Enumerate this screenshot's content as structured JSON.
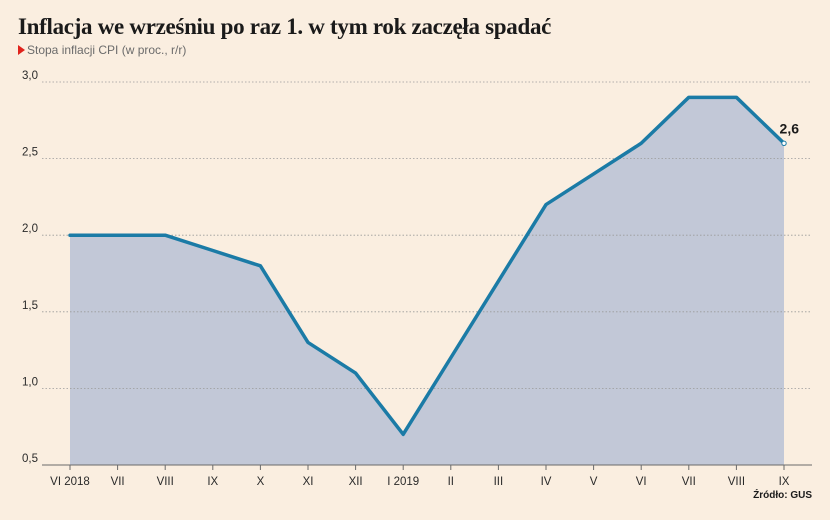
{
  "chart_data": {
    "type": "area",
    "title": "Inflacja we wrześniu po raz 1. w tym rok zaczęła spadać",
    "subtitle": "Stopa inflacji CPI (w proc., r/r)",
    "categories": [
      "VI 2018",
      "VII",
      "VIII",
      "IX",
      "X",
      "XI",
      "XII",
      "I 2019",
      "II",
      "III",
      "IV",
      "V",
      "VI",
      "VII",
      "VIII",
      "IX"
    ],
    "values": [
      2.0,
      2.0,
      2.0,
      1.9,
      1.8,
      1.3,
      1.1,
      0.7,
      1.2,
      1.7,
      2.2,
      2.4,
      2.6,
      2.9,
      2.9,
      2.6
    ],
    "ylim": [
      0.5,
      3.0
    ],
    "yticks": [
      0.5,
      1.0,
      1.5,
      2.0,
      2.5,
      3.0
    ],
    "ytick_labels": [
      "0,5",
      "1,0",
      "1,5",
      "2,0",
      "2,5",
      "3,0"
    ],
    "last_value_label": "2,6",
    "source": "Źródło: GUS",
    "grid": true,
    "colors": {
      "line": "#1b7ba6",
      "area": "#c2c8d7",
      "background": "#faeee0",
      "grid": "#9a9a9a"
    }
  }
}
